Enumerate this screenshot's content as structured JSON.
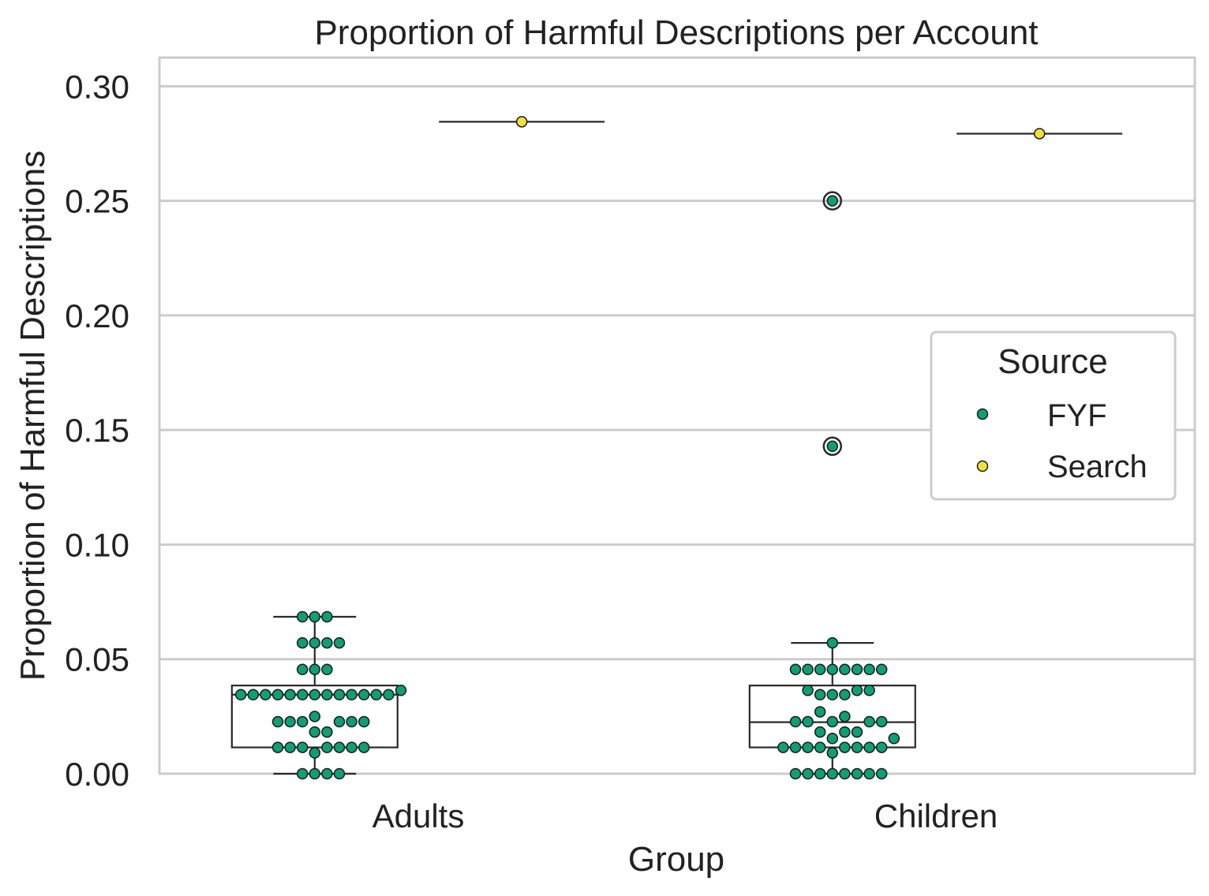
{
  "chart_data": {
    "type": "box",
    "title": "Proportion of Harmful Descriptions per Account",
    "xlabel": "Group",
    "ylabel": "Proportion of Harmful Descriptions",
    "categories": [
      "Adults",
      "Children"
    ],
    "ylim": [
      0,
      0.3125
    ],
    "yticks": [
      0.0,
      0.05,
      0.1,
      0.15,
      0.2,
      0.25,
      0.3
    ],
    "ytick_labels": [
      "0.00",
      "0.05",
      "0.10",
      "0.15",
      "0.20",
      "0.25",
      "0.30"
    ],
    "grid": true,
    "legend": {
      "title": "Source",
      "position": "center-right",
      "entries": [
        "FYF",
        "Search"
      ]
    },
    "colors": {
      "FYF": "#0f9e75",
      "Search": "#f0e13a",
      "box_edge": "#2a2a2a",
      "grid": "#cccccc"
    },
    "series": [
      {
        "name": "FYF",
        "boxes": [
          {
            "category": "Adults",
            "whisker_low": 0.0,
            "q1": 0.0115,
            "median": 0.0345,
            "q3": 0.0385,
            "whisker_high": 0.0685,
            "outliers": []
          },
          {
            "category": "Children",
            "whisker_low": 0.0,
            "q1": 0.0115,
            "median": 0.0225,
            "q3": 0.0385,
            "whisker_high": 0.0571,
            "outliers": [
              0.25,
              0.1429
            ]
          }
        ],
        "points": [
          {
            "category": "Adults",
            "values": [
              0.0685,
              0.0685,
              0.0685,
              0.0571,
              0.0571,
              0.0571,
              0.0571,
              0.0455,
              0.0455,
              0.0455,
              0.0364,
              0.0345,
              0.0345,
              0.0345,
              0.0345,
              0.0345,
              0.0345,
              0.0345,
              0.0345,
              0.0345,
              0.0345,
              0.0345,
              0.0345,
              0.0345,
              0.025,
              0.0227,
              0.0227,
              0.0227,
              0.0227,
              0.0227,
              0.0227,
              0.0182,
              0.0182,
              0.0115,
              0.0115,
              0.0115,
              0.0115,
              0.0115,
              0.0115,
              0.0115,
              0.0091,
              0.0,
              0.0,
              0.0,
              0.0
            ]
          },
          {
            "category": "Children",
            "values": [
              0.25,
              0.1429,
              0.0571,
              0.0455,
              0.0455,
              0.0455,
              0.0455,
              0.0455,
              0.0455,
              0.0455,
              0.0455,
              0.0364,
              0.0364,
              0.0364,
              0.0345,
              0.0345,
              0.0345,
              0.027,
              0.025,
              0.0227,
              0.0227,
              0.0227,
              0.0227,
              0.0227,
              0.0182,
              0.0182,
              0.0182,
              0.0154,
              0.0154,
              0.0115,
              0.0115,
              0.0115,
              0.0115,
              0.0115,
              0.0115,
              0.0115,
              0.0115,
              0.0091,
              0.0,
              0.0,
              0.0,
              0.0,
              0.0,
              0.0,
              0.0,
              0.0
            ]
          }
        ]
      },
      {
        "name": "Search",
        "boxes": [
          {
            "category": "Adults",
            "median": 0.2845
          },
          {
            "category": "Children",
            "median": 0.2793
          }
        ],
        "points": [
          {
            "category": "Adults",
            "values": [
              0.2845
            ]
          },
          {
            "category": "Children",
            "values": [
              0.2793
            ]
          }
        ]
      }
    ]
  }
}
